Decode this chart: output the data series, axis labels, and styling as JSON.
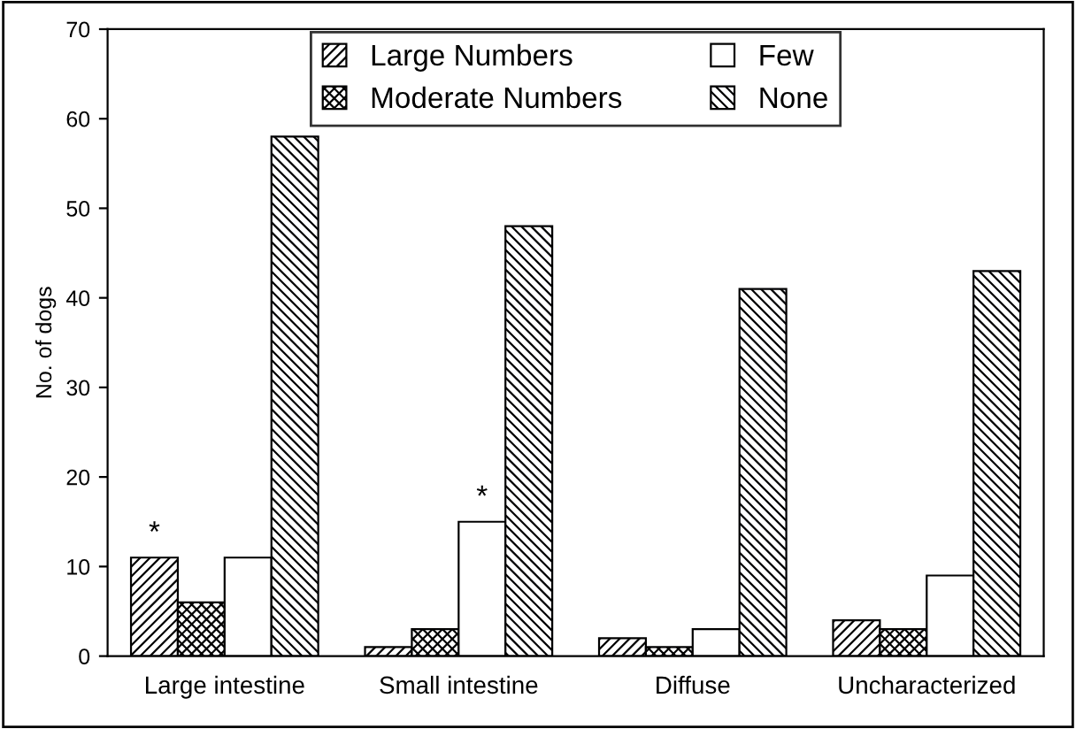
{
  "chart_data": {
    "type": "bar",
    "ylabel": "No. of dogs",
    "categories": [
      "Large intestine",
      "Small intestine",
      "Diffuse",
      "Uncharacterized"
    ],
    "series": [
      {
        "name": "Large Numbers",
        "color": "#000000",
        "values": [
          11,
          1,
          2,
          4
        ]
      },
      {
        "name": "Moderate Numbers",
        "color": "#000001",
        "values": [
          6,
          3,
          1,
          3
        ]
      },
      {
        "name": "Few",
        "color": "#ffffff",
        "values": [
          11,
          15,
          3,
          9
        ]
      },
      {
        "name": "None",
        "color": "#000002",
        "values": [
          58,
          48,
          41,
          43
        ]
      }
    ],
    "ylim": [
      0,
      70
    ],
    "yticks": [
      0,
      10,
      20,
      30,
      40,
      50,
      60,
      70
    ],
    "grid": false,
    "legend": "top",
    "annotations": [
      "*",
      "*"
    ]
  }
}
